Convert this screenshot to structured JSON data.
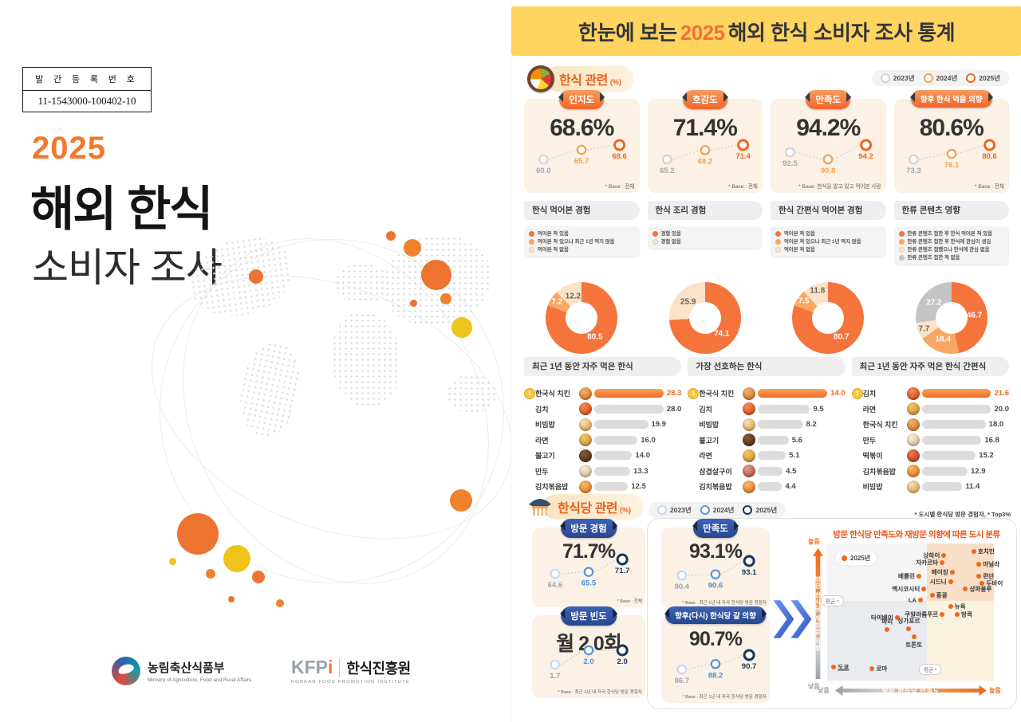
{
  "left_page": {
    "registration": {
      "label": "발 간 등 록 번 호",
      "number": "11-1543000-100402-10"
    },
    "year": "2025",
    "title": "해외 한식",
    "subtitle": "소비자 조사",
    "footer": {
      "maff_name": "농림축산식품부",
      "maff_eng": "Ministry of Agriculture, Food and Rural Affairs",
      "kfpi_abbr": "KFP",
      "kfpi_abbr_accent": "i",
      "kfpi_name": "한식진흥원",
      "kfpi_eng": "KOREAN FOOD PROMOTION INSTITUTE"
    }
  },
  "infographic": {
    "header": {
      "pre": "한눈에 보는",
      "year": "2025",
      "post": "해외 한식 소비자 조사 통계"
    },
    "food": {
      "title": "한식 관련",
      "unit": "(%)",
      "legend": [
        "2023년",
        "2024년",
        "2025년"
      ],
      "kpis": [
        {
          "label": "인지도",
          "value": "68.6%",
          "trend": [
            60.0,
            65.7,
            68.6
          ],
          "base": "* Base : 전체"
        },
        {
          "label": "호감도",
          "value": "71.4%",
          "trend": [
            65.2,
            69.2,
            71.4
          ],
          "base": "* Base : 전체"
        },
        {
          "label": "만족도",
          "value": "94.2%",
          "trend": [
            92.5,
            90.8,
            94.2
          ],
          "base": "* Base: 한식을 알고 있고 먹어본 사람"
        },
        {
          "label": "향후 한식 먹을 의향",
          "value": "80.6%",
          "trend": [
            73.3,
            76.1,
            80.6
          ],
          "base": "* Base : 전체"
        }
      ],
      "donut_panels": [
        {
          "title": "한식 먹어본 경험",
          "legend": [
            "먹어본 적 있음",
            "먹어본 적 있으나 최근 1년 먹지 않음",
            "먹어본 적 없음"
          ],
          "values": [
            80.5,
            7.2,
            12.2
          ],
          "palette": [
            0,
            1,
            2
          ]
        },
        {
          "title": "한식 조리 경험",
          "legend": [
            "경험 있음",
            "경험 없음"
          ],
          "values": [
            74.1,
            25.9
          ],
          "palette": [
            0,
            2
          ]
        },
        {
          "title": "한식 간편식 먹어본 경험",
          "legend": [
            "먹어본 적 있음",
            "먹어본 적 있으나 최근 1년 먹지 않음",
            "먹어본 적 없음"
          ],
          "values": [
            80.7,
            7.5,
            11.8
          ],
          "palette": [
            0,
            1,
            2
          ]
        },
        {
          "title": "한류 콘텐츠 영향",
          "legend": [
            "한류 콘텐츠 접한 후 한식 먹어본 적 있음",
            "한류 콘텐츠 접한 후 한식에 관심이 생김",
            "한류 콘텐츠 접했으나 한식에 관심 없음",
            "한류 콘텐츠 접한 적 없음"
          ],
          "values": [
            46.7,
            18.4,
            7.7,
            27.2
          ],
          "palette": [
            0,
            1,
            2,
            3
          ]
        }
      ],
      "rank_panels": [
        {
          "title": "최근 1년 동안 자주 먹은 한식",
          "items": [
            [
              "한국식 치킨",
              28.3
            ],
            [
              "김치",
              28.0
            ],
            [
              "비빔밥",
              19.9
            ],
            [
              "라면",
              16.0
            ],
            [
              "불고기",
              14.0
            ],
            [
              "만두",
              13.3
            ],
            [
              "김치볶음밥",
              12.5
            ]
          ]
        },
        {
          "title": "가장 선호하는 한식",
          "items": [
            [
              "한국식 치킨",
              14.0
            ],
            [
              "김치",
              9.5
            ],
            [
              "비빔밥",
              8.2
            ],
            [
              "불고기",
              5.6
            ],
            [
              "라면",
              5.1
            ],
            [
              "삼겹살구이",
              4.5
            ],
            [
              "김치볶음밥",
              4.4
            ]
          ]
        },
        {
          "title": "최근 1년 동안 자주 먹은 한식 간편식",
          "items": [
            [
              "김치",
              21.6
            ],
            [
              "라면",
              20.0
            ],
            [
              "한국식 치킨",
              18.0
            ],
            [
              "만두",
              16.8
            ],
            [
              "떡볶이",
              15.2
            ],
            [
              "김치볶음밥",
              12.9
            ],
            [
              "비빔밥",
              11.4
            ]
          ]
        }
      ]
    },
    "restaurant": {
      "title": "한식당 관련",
      "unit": "(%)",
      "legend": [
        "2023년",
        "2024년",
        "2025년"
      ],
      "kpis": [
        {
          "label": "방문 경험",
          "value": "71.7%",
          "trend": [
            64.6,
            65.5,
            71.7
          ],
          "base": "* Base : 전체"
        },
        {
          "label": "방문 빈도",
          "value": "월 2.0회",
          "trend": [
            1.7,
            2.0,
            2.0
          ],
          "base": "* Base : 최근 1년 내 자국 한식당 방문 경험자"
        },
        {
          "label": "만족도",
          "value": "93.1%",
          "trend": [
            90.4,
            90.6,
            93.1
          ],
          "base": "* Base : 최근 1년 내 자국 한식당 방문 경험자"
        },
        {
          "label": "향후(다시) 한식당 갈 의향",
          "value": "90.7%",
          "trend": [
            86.7,
            88.2,
            90.7
          ],
          "base": "* Base : 최근 1년 내 자국 한식당 방문 경험자"
        }
      ],
      "scatter": {
        "note": "* 도시별 한식당 방문 경험자, * Top3%",
        "title": "방문 한식당 만족도와 재방문 의향에 따른 도시 분류",
        "legend": "2025년",
        "x_axis": "방문 한식당 만족도",
        "y_axis": "방문 한식당 재방문 의향",
        "high": "높음",
        "low": "낮음",
        "avg": "평균 *"
      }
    }
  },
  "chart_data": [
    {
      "type": "line",
      "title": "인지도 (%)",
      "x": [
        "2023년",
        "2024년",
        "2025년"
      ],
      "values": [
        60.0,
        65.7,
        68.6
      ]
    },
    {
      "type": "line",
      "title": "호감도 (%)",
      "x": [
        "2023년",
        "2024년",
        "2025년"
      ],
      "values": [
        65.2,
        69.2,
        71.4
      ]
    },
    {
      "type": "line",
      "title": "만족도 (%)",
      "x": [
        "2023년",
        "2024년",
        "2025년"
      ],
      "values": [
        92.5,
        90.8,
        94.2
      ]
    },
    {
      "type": "line",
      "title": "향후 한식 먹을 의향 (%)",
      "x": [
        "2023년",
        "2024년",
        "2025년"
      ],
      "values": [
        73.3,
        76.1,
        80.6
      ]
    },
    {
      "type": "pie",
      "title": "한식 먹어본 경험 (%)",
      "labels": [
        "먹어본 적 있음",
        "먹어본 적 있으나 최근 1년 먹지 않음",
        "먹어본 적 없음"
      ],
      "values": [
        80.5,
        7.2,
        12.2
      ]
    },
    {
      "type": "pie",
      "title": "한식 조리 경험 (%)",
      "labels": [
        "경험 있음",
        "경험 없음"
      ],
      "values": [
        74.1,
        25.9
      ]
    },
    {
      "type": "pie",
      "title": "한식 간편식 먹어본 경험 (%)",
      "labels": [
        "먹어본 적 있음",
        "먹어본 적 있으나 최근 1년 먹지 않음",
        "먹어본 적 없음"
      ],
      "values": [
        80.7,
        7.5,
        11.8
      ]
    },
    {
      "type": "pie",
      "title": "한류 콘텐츠 영향 (%)",
      "labels": [
        "한류 콘텐츠 접한 후 한식 먹어본 적 있음",
        "한류 콘텐츠 접한 후 한식에 관심이 생김",
        "한류 콘텐츠 접했으나 한식에 관심 없음",
        "한류 콘텐츠 접한 적 없음"
      ],
      "values": [
        46.7,
        18.4,
        7.7,
        27.2
      ]
    },
    {
      "type": "bar",
      "title": "최근 1년 동안 자주 먹은 한식 (%)",
      "categories": [
        "한국식 치킨",
        "김치",
        "비빔밥",
        "라면",
        "불고기",
        "만두",
        "김치볶음밥"
      ],
      "values": [
        28.3,
        28.0,
        19.9,
        16.0,
        14.0,
        13.3,
        12.5
      ]
    },
    {
      "type": "bar",
      "title": "가장 선호하는 한식 (%)",
      "categories": [
        "한국식 치킨",
        "김치",
        "비빔밥",
        "불고기",
        "라면",
        "삼겹살구이",
        "김치볶음밥"
      ],
      "values": [
        14.0,
        9.5,
        8.2,
        5.6,
        5.1,
        4.5,
        4.4
      ]
    },
    {
      "type": "bar",
      "title": "최근 1년 동안 자주 먹은 한식 간편식 (%)",
      "categories": [
        "김치",
        "라면",
        "한국식 치킨",
        "만두",
        "떡볶이",
        "김치볶음밥",
        "비빔밥"
      ],
      "values": [
        21.6,
        20.0,
        18.0,
        16.8,
        15.2,
        12.9,
        11.4
      ]
    },
    {
      "type": "line",
      "title": "한식당 방문 경험 (%)",
      "x": [
        "2023년",
        "2024년",
        "2025년"
      ],
      "values": [
        64.6,
        65.5,
        71.7
      ]
    },
    {
      "type": "line",
      "title": "한식당 방문 빈도 (월 평균, 회)",
      "x": [
        "2023년",
        "2024년",
        "2025년"
      ],
      "values": [
        1.7,
        2.0,
        2.0
      ]
    },
    {
      "type": "line",
      "title": "한식당 만족도 (%)",
      "x": [
        "2023년",
        "2024년",
        "2025년"
      ],
      "values": [
        90.4,
        90.6,
        93.1
      ]
    },
    {
      "type": "line",
      "title": "향후(다시) 한식당 갈 의향 (%)",
      "x": [
        "2023년",
        "2024년",
        "2025년"
      ],
      "values": [
        86.7,
        88.2,
        90.7
      ]
    },
    {
      "type": "scatter",
      "title": "방문 한식당 만족도와 재방문 의향에 따른 도시 분류",
      "xlabel": "방문 한식당 만족도",
      "ylabel": "방문 한식당 재방문 의향",
      "divider_x_pct": 60,
      "divider_y_pct": 42,
      "points": [
        {
          "name": "상하이",
          "x": 70,
          "y": 9,
          "side": "left"
        },
        {
          "name": "호치민",
          "x": 88,
          "y": 6,
          "side": "right"
        },
        {
          "name": "자카르타",
          "x": 69,
          "y": 14,
          "side": "left"
        },
        {
          "name": "마닐라",
          "x": 91,
          "y": 15,
          "side": "right"
        },
        {
          "name": "베이징",
          "x": 75,
          "y": 21,
          "side": "left"
        },
        {
          "name": "런던",
          "x": 91,
          "y": 24,
          "side": "right"
        },
        {
          "name": "시드니",
          "x": 74,
          "y": 28,
          "side": "left"
        },
        {
          "name": "두바이",
          "x": 93,
          "y": 29,
          "side": "right"
        },
        {
          "name": "상파울루",
          "x": 83,
          "y": 33,
          "side": "right"
        },
        {
          "name": "베를린",
          "x": 55,
          "y": 24,
          "side": "left"
        },
        {
          "name": "멕시코시티",
          "x": 58,
          "y": 33,
          "side": "left"
        },
        {
          "name": "LA",
          "x": 56,
          "y": 41,
          "side": "left"
        },
        {
          "name": "홍콩",
          "x": 63,
          "y": 38,
          "side": "right"
        },
        {
          "name": "뉴욕",
          "x": 74,
          "y": 46,
          "side": "right"
        },
        {
          "name": "쿠알라룸푸르",
          "x": 69,
          "y": 52,
          "side": "left"
        },
        {
          "name": "방콕",
          "x": 78,
          "y": 52,
          "side": "right"
        },
        {
          "name": "타이베이",
          "x": 42,
          "y": 54,
          "side": "left"
        },
        {
          "name": "파리",
          "x": 36,
          "y": 63,
          "side": "top"
        },
        {
          "name": "싱가포르",
          "x": 49,
          "y": 62,
          "side": "top"
        },
        {
          "name": "토론토",
          "x": 52,
          "y": 68,
          "side": "bottom"
        },
        {
          "name": "로마",
          "x": 27,
          "y": 91,
          "side": "right"
        },
        {
          "name": "도쿄",
          "x": 4,
          "y": 90,
          "side": "right",
          "underline": true
        }
      ]
    }
  ]
}
